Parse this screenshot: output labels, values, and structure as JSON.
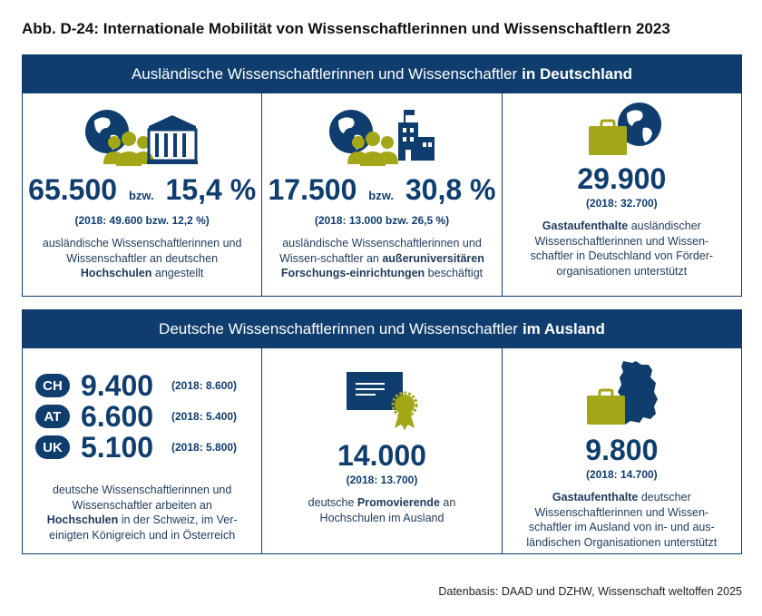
{
  "title": "Abb. D-24: Internationale Mobilität von Wissenschaftlerinnen und Wissenschaftlern 2023",
  "section1": {
    "header_prefix": "Ausländische Wissenschaftlerinnen und Wissenschaftler",
    "header_bold": "in Deutschland",
    "cards": [
      {
        "value1": "65.500",
        "conj": "bzw.",
        "value2": "15,4 %",
        "prev": "(2018: 49.600 bzw. 12,2 %)",
        "desc_a": "ausländische Wissenschaftlerinnen und Wissenschaftler an deutschen",
        "desc_bold": "Hochschulen",
        "desc_b": "angestellt"
      },
      {
        "value1": "17.500",
        "conj": "bzw.",
        "value2": "30,8 %",
        "prev": "(2018: 13.000 bzw. 26,5 %)",
        "desc_a": "ausländische Wissenschaftlerinnen und Wissen-schaftler an",
        "desc_bold": "außeruniversitären Forschungs-einrichtungen",
        "desc_b": "beschäftigt"
      },
      {
        "value1": "29.900",
        "prev": "(2018: 32.700)",
        "desc_bold": "Gastaufenthalte",
        "desc_b": "ausländischer Wissenschaftlerinnen und Wissen-schaftler in Deutschland von Förder-organisationen unterstützt"
      }
    ]
  },
  "section2": {
    "header_prefix": "Deutsche Wissenschaftlerinnen und Wissenschaftler",
    "header_bold": "im Ausland",
    "countries": [
      {
        "code": "CH",
        "value": "9.400",
        "prev": "(2018: 8.600)"
      },
      {
        "code": "AT",
        "value": "6.600",
        "prev": "(2018: 5.400)"
      },
      {
        "code": "UK",
        "value": "5.100",
        "prev": "(2018: 5.800)"
      }
    ],
    "card1": {
      "desc_a": "deutsche Wissenschaftlerinnen und Wissenschaftler arbeiten an",
      "desc_bold": "Hochschulen",
      "desc_b": "in der Schweiz, im Ver-einigten Königreich und in Österreich"
    },
    "card2": {
      "value": "14.000",
      "prev": "(2018: 13.700)",
      "desc_a": "deutsche",
      "desc_bold": "Promovierende",
      "desc_b": "an Hochschulen im Ausland"
    },
    "card3": {
      "value": "9.800",
      "prev": "(2018: 14.700)",
      "desc_bold": "Gastaufenthalte",
      "desc_b": "deutscher Wissenschaftlerinnen und Wissen-schaftler im Ausland von in- und aus-ländischen Organisationen unterstützt"
    }
  },
  "source": "Datenbasis: DAAD und DZHW, Wissenschaft weltoffen 2025",
  "colors": {
    "navy": "#0e3d6e",
    "olive": "#a3a617"
  }
}
